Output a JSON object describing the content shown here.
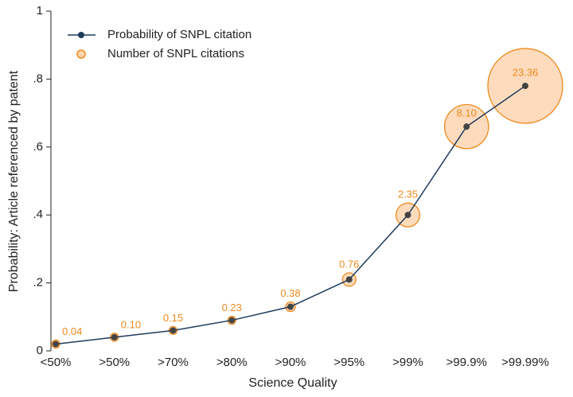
{
  "chart_data": {
    "type": "line",
    "x_label": "Science Quality",
    "y_label": "Probability: Article referenced by patent",
    "categories": [
      "<50%",
      ">50%",
      ">70%",
      ">80%",
      ">90%",
      ">95%",
      ">99%",
      ">99.9%",
      ">99.99%"
    ],
    "series": [
      {
        "name": "Probability of SNPL citation",
        "color": "#1f3b5c",
        "values": [
          0.02,
          0.04,
          0.06,
          0.09,
          0.13,
          0.21,
          0.4,
          0.66,
          0.78
        ]
      },
      {
        "name": "Number of SNPL citations",
        "color": "#ee8a1e",
        "values": [
          0.04,
          0.1,
          0.15,
          0.23,
          0.38,
          0.76,
          2.35,
          8.1,
          23.36
        ],
        "value_labels": [
          "0.04",
          "0.10",
          "0.15",
          "0.23",
          "0.38",
          "0.76",
          "2.35",
          "8.10",
          "23.36"
        ]
      }
    ],
    "ylim": [
      0,
      1
    ],
    "yticks": [
      0,
      {
        "value": 0.2,
        "label": ".2"
      },
      {
        "value": 0.4,
        "label": ".4"
      },
      {
        "value": 0.6,
        "label": ".6"
      },
      {
        "value": 0.8,
        "label": ".8"
      },
      1
    ],
    "legend": "top-left"
  }
}
